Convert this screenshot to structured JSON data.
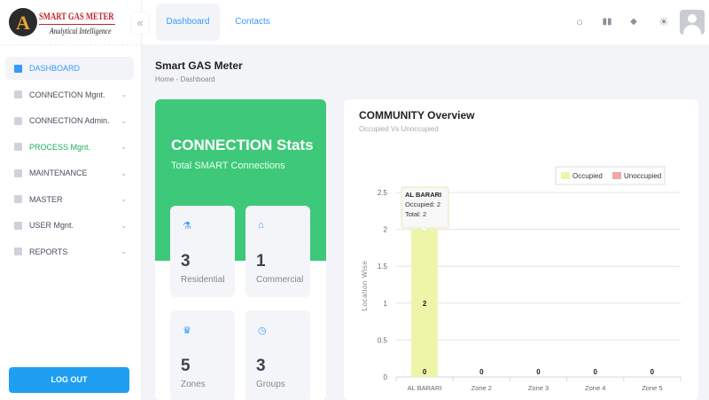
{
  "brand": {
    "name": "SMART GAS METER",
    "tagline": "Analytical Intelligence"
  },
  "sidebar": {
    "items": [
      {
        "label": "DASHBOARD",
        "icon": "dashboard-icon"
      },
      {
        "label": "CONNECTION Mgnt.",
        "icon": "connection-icon"
      },
      {
        "label": "CONNECTION Admin.",
        "icon": "admin-icon"
      },
      {
        "label": "PROCESS Mgnt.",
        "icon": "document-icon"
      },
      {
        "label": "MAINTENANCE",
        "icon": "fingerprint-icon"
      },
      {
        "label": "MASTER",
        "icon": "pie-icon"
      },
      {
        "label": "USER Mgnt.",
        "icon": "shield-icon"
      },
      {
        "label": "REPORTS",
        "icon": "layout-icon"
      }
    ],
    "logout": "LOG OUT"
  },
  "header": {
    "tabs": [
      "Dashboard",
      "Contacts"
    ]
  },
  "page": {
    "title": "Smart GAS Meter",
    "breadcrumb": [
      "Home",
      "Dashboard"
    ]
  },
  "stats": {
    "title": "CONNECTION Stats",
    "subtitle": "Total SMART Connections",
    "color": "#3ec97a",
    "tiles": [
      {
        "value": "3",
        "label": "Residential"
      },
      {
        "value": "1",
        "label": "Commercial"
      },
      {
        "value": "5",
        "label": "Zones"
      },
      {
        "value": "3",
        "label": "Groups"
      }
    ]
  },
  "overview": {
    "title": "COMMUNITY Overview",
    "subtitle": "Occupied Vs Unoccupied",
    "tooltip": {
      "title": "AL BARARI",
      "line1": "Occupied: 2",
      "line2": "Total: 2"
    }
  },
  "chart_data": {
    "type": "bar",
    "categories": [
      "AL BARARI",
      "Zone 2",
      "Zone 3",
      "Zone 4",
      "Zone 5"
    ],
    "series": [
      {
        "name": "Occupied",
        "values": [
          2,
          0,
          0,
          0,
          0
        ],
        "color": "#eef5a8"
      },
      {
        "name": "Unoccupied",
        "values": [
          0,
          0,
          0,
          0,
          0
        ],
        "color": "#eca9a9"
      }
    ],
    "ylabel": "Location Wise",
    "ylim": [
      0,
      2.5
    ],
    "yticks": [
      "0",
      "0.5",
      "1",
      "1.5",
      "2",
      "2.5"
    ],
    "grid": true,
    "legend": "top-right"
  }
}
